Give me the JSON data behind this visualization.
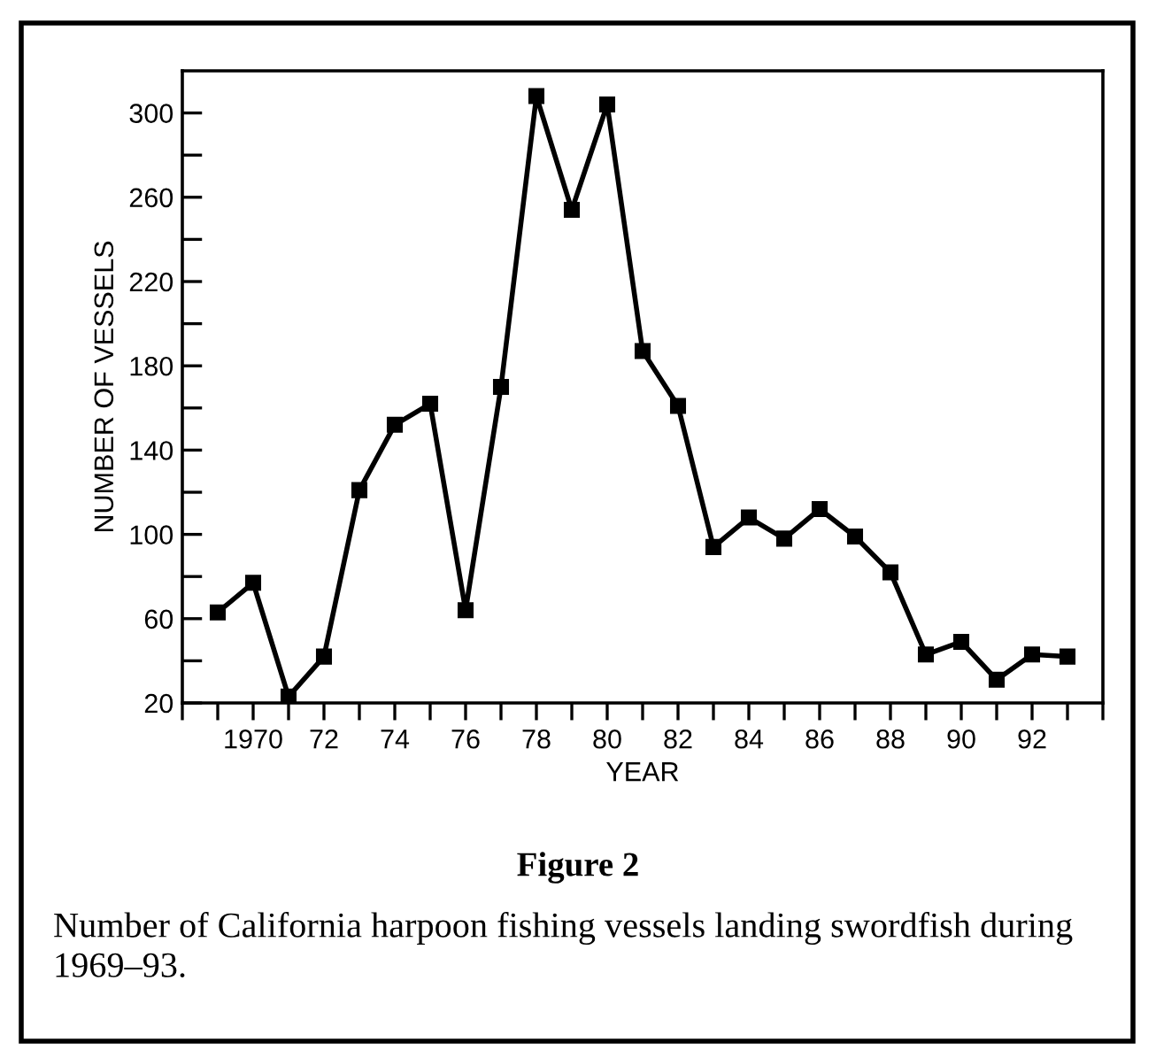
{
  "chart_data": {
    "type": "line",
    "xlabel": "YEAR",
    "ylabel": "NUMBER OF VESSELS",
    "x": [
      1969,
      1970,
      1971,
      1972,
      1973,
      1974,
      1975,
      1976,
      1977,
      1978,
      1979,
      1980,
      1981,
      1982,
      1983,
      1984,
      1985,
      1986,
      1987,
      1988,
      1989,
      1990,
      1991,
      1992,
      1993
    ],
    "series": [
      {
        "color": "#000000",
        "values": [
          63,
          77,
          23,
          42,
          121,
          152,
          162,
          64,
          170,
          308,
          254,
          304,
          187,
          161,
          94,
          108,
          98,
          112,
          99,
          82,
          43,
          49,
          31,
          43,
          42
        ]
      }
    ],
    "xlim": [
      1968,
      1994
    ],
    "xticks": [
      {
        "value": 1968,
        "label": null
      },
      {
        "value": 1969,
        "label": null
      },
      {
        "value": 1970,
        "label": "1970"
      },
      {
        "value": 1971,
        "label": null
      },
      {
        "value": 1972,
        "label": "72"
      },
      {
        "value": 1973,
        "label": null
      },
      {
        "value": 1974,
        "label": "74"
      },
      {
        "value": 1975,
        "label": null
      },
      {
        "value": 1976,
        "label": "76"
      },
      {
        "value": 1977,
        "label": null
      },
      {
        "value": 1978,
        "label": "78"
      },
      {
        "value": 1979,
        "label": null
      },
      {
        "value": 1980,
        "label": "80"
      },
      {
        "value": 1981,
        "label": null
      },
      {
        "value": 1982,
        "label": "82"
      },
      {
        "value": 1983,
        "label": null
      },
      {
        "value": 1984,
        "label": "84"
      },
      {
        "value": 1985,
        "label": null
      },
      {
        "value": 1986,
        "label": "86"
      },
      {
        "value": 1987,
        "label": null
      },
      {
        "value": 1988,
        "label": "88"
      },
      {
        "value": 1989,
        "label": null
      },
      {
        "value": 1990,
        "label": "90"
      },
      {
        "value": 1991,
        "label": null
      },
      {
        "value": 1992,
        "label": "92"
      },
      {
        "value": 1993,
        "label": null
      },
      {
        "value": 1994,
        "label": null
      }
    ],
    "ylim": [
      20,
      320
    ],
    "yticks": [
      20,
      {
        "value": 40,
        "label": null
      },
      60,
      {
        "value": 80,
        "label": null
      },
      100,
      {
        "value": 120,
        "label": null
      },
      140,
      {
        "value": 160,
        "label": null
      },
      180,
      {
        "value": 200,
        "label": null
      },
      220,
      {
        "value": 240,
        "label": null
      },
      260,
      {
        "value": 280,
        "label": null
      },
      300
    ],
    "marker": "square",
    "line_style": "solid",
    "grid": false,
    "legend": false,
    "annotations": [
      "Figure 2",
      "Number of California harpoon fishing vessels landing swordfish during 1969–93."
    ]
  }
}
